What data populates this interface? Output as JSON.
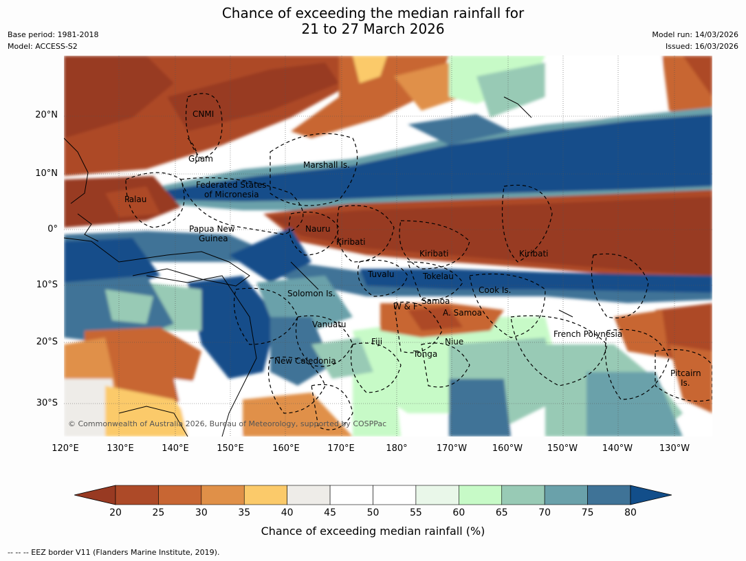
{
  "title_line1": "Chance of exceeding the median rainfall for",
  "title_line2": "21 to 27 March 2026",
  "meta": {
    "base_period": "Base period: 1981-2018",
    "model": "Model: ACCESS-S2",
    "model_run": "Model run: 14/03/2026",
    "issued": "Issued: 16/03/2026"
  },
  "lat_ticks": [
    "20°N",
    "10°N",
    "0°",
    "10°S",
    "20°S",
    "30°S"
  ],
  "lon_ticks": [
    "120°E",
    "130°E",
    "140°E",
    "150°E",
    "160°E",
    "170°E",
    "180°",
    "170°W",
    "160°W",
    "150°W",
    "140°W",
    "130°W"
  ],
  "regions": {
    "cnmi": "CNMI",
    "guam": "Guam",
    "marshall": "Marshall Is.",
    "fsm1": "Federated States",
    "fsm2": "of Micronesia",
    "palau": "Palau",
    "png1": "Papua New",
    "png2": "Guinea",
    "nauru": "Nauru",
    "kiribati1": "Kiribati",
    "kiribati2": "Kiribati",
    "kiribati3": "Kiribati",
    "tuvalu": "Tuvalu",
    "tokelau": "Tokelau",
    "cook": "Cook Is.",
    "solomon": "Solomon Is.",
    "samoa": "Samoa",
    "wf": "W & F",
    "asamoa": "A. Samoa",
    "vanuatu": "Vanuatu",
    "fiji": "Fiji",
    "niue": "Niue",
    "tonga": "Tonga",
    "frenchpoly": "French Polynesia",
    "newcal": "New Caledonia",
    "pitcairn1": "Pitcairn",
    "pitcairn2": "Is."
  },
  "copyright": "© Commonwealth of Australia 2026, Bureau of Meteorology, supported by COSPPac",
  "colorbar": {
    "labels": [
      "20",
      "25",
      "30",
      "35",
      "40",
      "45",
      "50",
      "55",
      "60",
      "65",
      "70",
      "75",
      "80"
    ],
    "colors": [
      "#ad4a28",
      "#c86633",
      "#e09048",
      "#fbca6a",
      "#eeece8",
      "#ffffff",
      "#ffffff",
      "#e9f7e9",
      "#c7fac7",
      "#98cab5",
      "#6aa1aa",
      "#3f7397"
    ],
    "under_color": "#983a22",
    "over_color": "#124e8a",
    "title": "Chance of exceeding median rainfall (%)"
  },
  "footnote": "--  --  -- EEZ border V11 (Flanders Marine Institute, 2019)."
}
